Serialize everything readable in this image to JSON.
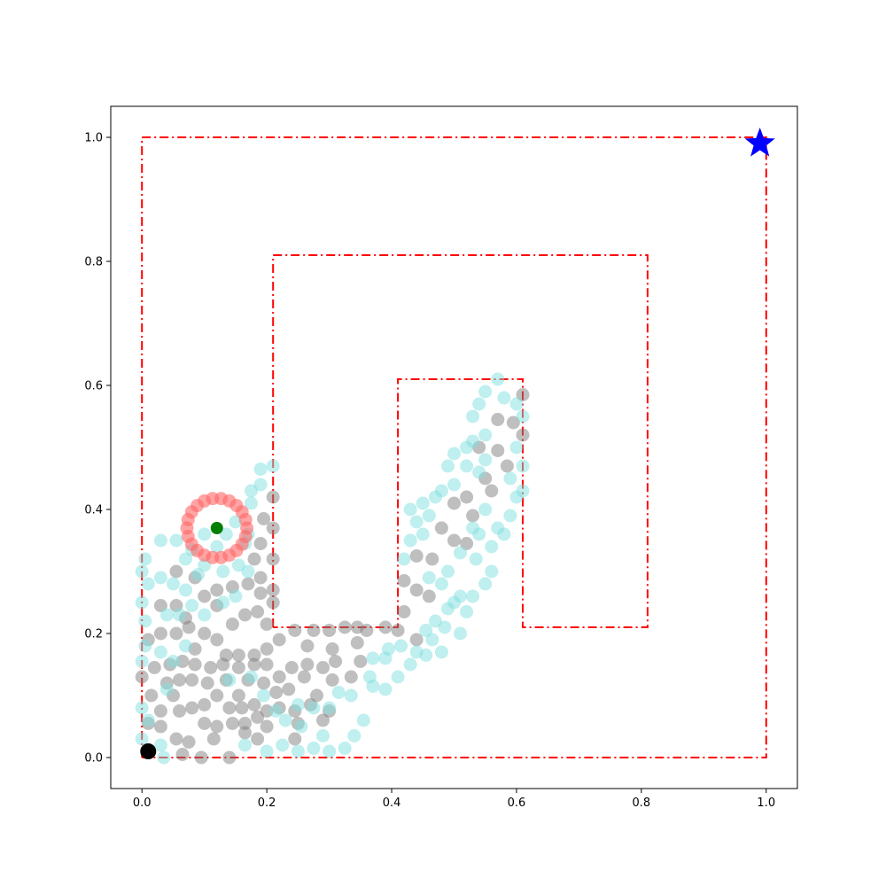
{
  "chart_data": {
    "type": "scatter",
    "title": "",
    "xlabel": "",
    "ylabel": "",
    "xlim": [
      -0.05,
      1.05
    ],
    "ylim": [
      -0.05,
      1.05
    ],
    "grid": false,
    "legend": "none",
    "x_ticks": [
      {
        "value": 0.0,
        "label": "0.0"
      },
      {
        "value": 0.2,
        "label": "0.2"
      },
      {
        "value": 0.4,
        "label": "0.4"
      },
      {
        "value": 0.6,
        "label": "0.6"
      },
      {
        "value": 0.8,
        "label": "0.8"
      },
      {
        "value": 1.0,
        "label": "1.0"
      }
    ],
    "y_ticks": [
      {
        "value": 0.0,
        "label": "0.0"
      },
      {
        "value": 0.2,
        "label": "0.2"
      },
      {
        "value": 0.4,
        "label": "0.4"
      },
      {
        "value": 0.6,
        "label": "0.6"
      },
      {
        "value": 0.8,
        "label": "0.8"
      },
      {
        "value": 1.0,
        "label": "1.0"
      }
    ],
    "maze": {
      "color": "#ff0000",
      "style": "dash-dot",
      "path": [
        [
          0.0,
          0.0
        ],
        [
          0.0,
          1.0
        ],
        [
          1.0,
          1.0
        ],
        [
          1.0,
          0.0
        ],
        [
          0.0,
          0.0
        ]
      ],
      "paths": [
        [
          [
            0.21,
            0.21
          ],
          [
            0.21,
            0.81
          ],
          [
            0.81,
            0.81
          ],
          [
            0.81,
            0.21
          ],
          [
            0.61,
            0.21
          ],
          [
            0.61,
            0.61
          ],
          [
            0.41,
            0.61
          ],
          [
            0.41,
            0.21
          ],
          [
            0.21,
            0.21
          ]
        ]
      ]
    },
    "series": [
      {
        "color": "#808080",
        "opacity": 0.5,
        "points": [
          [
            0.0,
            0.13
          ],
          [
            0.02,
            0.145
          ],
          [
            0.045,
            0.15
          ],
          [
            0.065,
            0.155
          ],
          [
            0.085,
            0.15
          ],
          [
            0.11,
            0.145
          ],
          [
            0.13,
            0.15
          ],
          [
            0.155,
            0.145
          ],
          [
            0.18,
            0.15
          ],
          [
            0.2,
            0.15
          ],
          [
            0.22,
            0.13
          ],
          [
            0.24,
            0.145
          ],
          [
            0.265,
            0.15
          ],
          [
            0.29,
            0.145
          ],
          [
            0.31,
            0.155
          ],
          [
            0.335,
            0.13
          ],
          [
            0.35,
            0.155
          ],
          [
            0.015,
            0.1
          ],
          [
            0.04,
            0.12
          ],
          [
            0.06,
            0.125
          ],
          [
            0.08,
            0.125
          ],
          [
            0.105,
            0.12
          ],
          [
            0.135,
            0.125
          ],
          [
            0.155,
            0.1
          ],
          [
            0.17,
            0.125
          ],
          [
            0.195,
            0.12
          ],
          [
            0.215,
            0.105
          ],
          [
            0.235,
            0.11
          ],
          [
            0.26,
            0.13
          ],
          [
            0.28,
            0.1
          ],
          [
            0.305,
            0.125
          ],
          [
            0.01,
            0.055
          ],
          [
            0.03,
            0.075
          ],
          [
            0.05,
            0.1
          ],
          [
            0.06,
            0.075
          ],
          [
            0.08,
            0.08
          ],
          [
            0.1,
            0.085
          ],
          [
            0.12,
            0.1
          ],
          [
            0.14,
            0.08
          ],
          [
            0.16,
            0.08
          ],
          [
            0.18,
            0.085
          ],
          [
            0.2,
            0.075
          ],
          [
            0.22,
            0.08
          ],
          [
            0.245,
            0.075
          ],
          [
            0.27,
            0.085
          ],
          [
            0.3,
            0.075
          ],
          [
            0.03,
            0.05
          ],
          [
            0.055,
            0.03
          ],
          [
            0.075,
            0.025
          ],
          [
            0.1,
            0.055
          ],
          [
            0.12,
            0.05
          ],
          [
            0.145,
            0.055
          ],
          [
            0.165,
            0.055
          ],
          [
            0.185,
            0.065
          ],
          [
            0.2,
            0.05
          ],
          [
            0.25,
            0.055
          ],
          [
            0.29,
            0.06
          ],
          [
            0.065,
            0.005
          ],
          [
            0.095,
            0.0
          ],
          [
            0.115,
            0.03
          ],
          [
            0.14,
            0.0
          ],
          [
            0.165,
            0.04
          ],
          [
            0.185,
            0.03
          ],
          [
            0.245,
            0.03
          ],
          [
            0.01,
            0.19
          ],
          [
            0.03,
            0.2
          ],
          [
            0.055,
            0.2
          ],
          [
            0.07,
            0.225
          ],
          [
            0.085,
            0.175
          ],
          [
            0.1,
            0.2
          ],
          [
            0.12,
            0.19
          ],
          [
            0.135,
            0.165
          ],
          [
            0.155,
            0.165
          ],
          [
            0.18,
            0.165
          ],
          [
            0.2,
            0.175
          ],
          [
            0.22,
            0.19
          ],
          [
            0.245,
            0.205
          ],
          [
            0.275,
            0.205
          ],
          [
            0.3,
            0.205
          ],
          [
            0.325,
            0.21
          ],
          [
            0.345,
            0.21
          ],
          [
            0.36,
            0.205
          ],
          [
            0.39,
            0.21
          ],
          [
            0.41,
            0.205
          ],
          [
            0.44,
            0.19
          ],
          [
            0.345,
            0.185
          ],
          [
            0.305,
            0.175
          ],
          [
            0.265,
            0.18
          ],
          [
            0.03,
            0.245
          ],
          [
            0.055,
            0.245
          ],
          [
            0.075,
            0.21
          ],
          [
            0.1,
            0.26
          ],
          [
            0.12,
            0.245
          ],
          [
            0.145,
            0.215
          ],
          [
            0.165,
            0.23
          ],
          [
            0.185,
            0.235
          ],
          [
            0.2,
            0.215
          ],
          [
            0.21,
            0.25
          ],
          [
            0.055,
            0.3
          ],
          [
            0.085,
            0.29
          ],
          [
            0.12,
            0.27
          ],
          [
            0.145,
            0.275
          ],
          [
            0.17,
            0.28
          ],
          [
            0.19,
            0.265
          ],
          [
            0.21,
            0.27
          ],
          [
            0.19,
            0.29
          ],
          [
            0.18,
            0.32
          ],
          [
            0.21,
            0.32
          ],
          [
            0.19,
            0.345
          ],
          [
            0.21,
            0.37
          ],
          [
            0.195,
            0.385
          ],
          [
            0.21,
            0.42
          ],
          [
            0.42,
            0.235
          ],
          [
            0.44,
            0.27
          ],
          [
            0.42,
            0.285
          ],
          [
            0.46,
            0.26
          ],
          [
            0.44,
            0.325
          ],
          [
            0.465,
            0.32
          ],
          [
            0.48,
            0.37
          ],
          [
            0.5,
            0.35
          ],
          [
            0.52,
            0.345
          ],
          [
            0.5,
            0.41
          ],
          [
            0.53,
            0.39
          ],
          [
            0.52,
            0.42
          ],
          [
            0.55,
            0.45
          ],
          [
            0.54,
            0.5
          ],
          [
            0.56,
            0.43
          ],
          [
            0.57,
            0.495
          ],
          [
            0.585,
            0.47
          ],
          [
            0.57,
            0.545
          ],
          [
            0.595,
            0.54
          ],
          [
            0.61,
            0.52
          ],
          [
            0.61,
            0.585
          ]
        ]
      },
      {
        "color": "#7fe0e0",
        "opacity": 0.5,
        "points": [
          [
            0.005,
            0.32
          ],
          [
            0.03,
            0.35
          ],
          [
            0.055,
            0.35
          ],
          [
            0.07,
            0.32
          ],
          [
            0.08,
            0.335
          ],
          [
            0.1,
            0.36
          ],
          [
            0.12,
            0.34
          ],
          [
            0.135,
            0.36
          ],
          [
            0.15,
            0.38
          ],
          [
            0.175,
            0.41
          ],
          [
            0.19,
            0.465
          ],
          [
            0.21,
            0.47
          ],
          [
            0.175,
            0.43
          ],
          [
            0.19,
            0.44
          ],
          [
            0.0,
            0.3
          ],
          [
            0.03,
            0.29
          ],
          [
            0.05,
            0.28
          ],
          [
            0.07,
            0.27
          ],
          [
            0.09,
            0.295
          ],
          [
            0.1,
            0.31
          ],
          [
            0.13,
            0.3
          ],
          [
            0.155,
            0.31
          ],
          [
            0.165,
            0.345
          ],
          [
            0.17,
            0.36
          ],
          [
            0.17,
            0.3
          ],
          [
            0.0,
            0.25
          ],
          [
            0.01,
            0.28
          ],
          [
            0.04,
            0.23
          ],
          [
            0.06,
            0.23
          ],
          [
            0.08,
            0.245
          ],
          [
            0.1,
            0.23
          ],
          [
            0.13,
            0.25
          ],
          [
            0.15,
            0.26
          ],
          [
            0.005,
            0.18
          ],
          [
            0.03,
            0.17
          ],
          [
            0.05,
            0.155
          ],
          [
            0.07,
            0.18
          ],
          [
            0.04,
            0.11
          ],
          [
            0.005,
            0.22
          ],
          [
            0.0,
            0.155
          ],
          [
            0.0,
            0.08
          ],
          [
            0.01,
            0.06
          ],
          [
            0.0,
            0.03
          ],
          [
            0.03,
            0.02
          ],
          [
            0.035,
            0.0
          ],
          [
            0.165,
            0.02
          ],
          [
            0.2,
            0.01
          ],
          [
            0.225,
            0.02
          ],
          [
            0.25,
            0.01
          ],
          [
            0.275,
            0.015
          ],
          [
            0.3,
            0.01
          ],
          [
            0.325,
            0.015
          ],
          [
            0.34,
            0.035
          ],
          [
            0.355,
            0.06
          ],
          [
            0.37,
            0.115
          ],
          [
            0.39,
            0.11
          ],
          [
            0.41,
            0.13
          ],
          [
            0.43,
            0.15
          ],
          [
            0.455,
            0.165
          ],
          [
            0.465,
            0.19
          ],
          [
            0.48,
            0.17
          ],
          [
            0.485,
            0.21
          ],
          [
            0.51,
            0.2
          ],
          [
            0.52,
            0.235
          ],
          [
            0.5,
            0.25
          ],
          [
            0.55,
            0.28
          ],
          [
            0.37,
            0.16
          ],
          [
            0.365,
            0.13
          ],
          [
            0.335,
            0.1
          ],
          [
            0.315,
            0.105
          ],
          [
            0.3,
            0.08
          ],
          [
            0.275,
            0.08
          ],
          [
            0.25,
            0.085
          ],
          [
            0.23,
            0.06
          ],
          [
            0.215,
            0.075
          ],
          [
            0.195,
            0.1
          ],
          [
            0.175,
            0.13
          ],
          [
            0.14,
            0.125
          ],
          [
            0.255,
            0.05
          ],
          [
            0.29,
            0.035
          ],
          [
            0.39,
            0.16
          ],
          [
            0.395,
            0.175
          ],
          [
            0.415,
            0.18
          ],
          [
            0.44,
            0.17
          ],
          [
            0.455,
            0.205
          ],
          [
            0.47,
            0.22
          ],
          [
            0.49,
            0.24
          ],
          [
            0.51,
            0.26
          ],
          [
            0.53,
            0.26
          ],
          [
            0.56,
            0.3
          ],
          [
            0.535,
            0.32
          ],
          [
            0.51,
            0.33
          ],
          [
            0.49,
            0.3
          ],
          [
            0.48,
            0.28
          ],
          [
            0.46,
            0.29
          ],
          [
            0.42,
            0.32
          ],
          [
            0.43,
            0.35
          ],
          [
            0.45,
            0.36
          ],
          [
            0.46,
            0.39
          ],
          [
            0.44,
            0.38
          ],
          [
            0.43,
            0.4
          ],
          [
            0.45,
            0.41
          ],
          [
            0.47,
            0.42
          ],
          [
            0.48,
            0.43
          ],
          [
            0.5,
            0.44
          ],
          [
            0.49,
            0.47
          ],
          [
            0.5,
            0.49
          ],
          [
            0.52,
            0.5
          ],
          [
            0.52,
            0.47
          ],
          [
            0.54,
            0.46
          ],
          [
            0.55,
            0.48
          ],
          [
            0.53,
            0.51
          ],
          [
            0.55,
            0.52
          ],
          [
            0.53,
            0.55
          ],
          [
            0.54,
            0.57
          ],
          [
            0.55,
            0.59
          ],
          [
            0.57,
            0.61
          ],
          [
            0.58,
            0.58
          ],
          [
            0.6,
            0.57
          ],
          [
            0.61,
            0.55
          ],
          [
            0.59,
            0.45
          ],
          [
            0.6,
            0.42
          ],
          [
            0.61,
            0.43
          ],
          [
            0.59,
            0.39
          ],
          [
            0.58,
            0.36
          ],
          [
            0.56,
            0.34
          ],
          [
            0.57,
            0.37
          ],
          [
            0.55,
            0.4
          ],
          [
            0.54,
            0.36
          ],
          [
            0.53,
            0.37
          ],
          [
            0.61,
            0.47
          ],
          [
            0.6,
            0.5
          ]
        ]
      }
    ],
    "ring": {
      "color": "#ff6666",
      "center": [
        0.12,
        0.37
      ],
      "radius": 0.048,
      "count": 22
    },
    "current_position": {
      "color": "#008000",
      "point": [
        0.12,
        0.37
      ]
    },
    "start_marker": {
      "color": "#000000",
      "point": [
        0.01,
        0.01
      ]
    },
    "goal_marker": {
      "color": "#0000ff",
      "point": [
        0.99,
        0.99
      ]
    }
  }
}
